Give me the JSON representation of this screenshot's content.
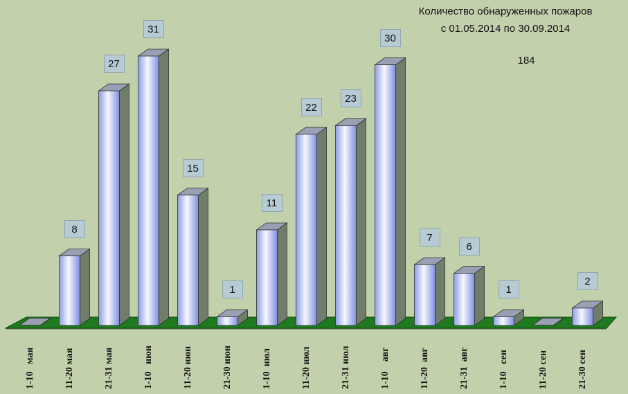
{
  "chart_data": {
    "type": "bar",
    "title": "Количество обнаруженных пожаров",
    "subtitle": "с 01.05.2014  по  30.09.2014",
    "total": "184",
    "categories": [
      "1-10   мая",
      "11-20 мая",
      "21-31 мая",
      "1-10   июн",
      "11-20 июн",
      "21-30 июн",
      "1-10  июл",
      "11-20 июл",
      "21-31 июл",
      "1-10    авг",
      "11-20  авг",
      "21-31  авг",
      "1-10   сен",
      "11-20 сен",
      "21-30 сен"
    ],
    "values": [
      0,
      8,
      27,
      31,
      15,
      1,
      11,
      22,
      23,
      30,
      7,
      6,
      1,
      0,
      2
    ],
    "value_labels": [
      "",
      "8",
      "27",
      "31",
      "15",
      "1",
      "11",
      "22",
      "23",
      "30",
      "7",
      "6",
      "1",
      "",
      "2"
    ],
    "xlabel": "",
    "ylabel": "",
    "ylim": [
      0,
      31
    ],
    "grid": false,
    "style": "3d-column",
    "colors": {
      "background": "#c3d0ac",
      "floor": "#1f7a1f",
      "bar_front_light": "#f6f8ff",
      "bar_front_dark": "#7f8fe0",
      "bar_side": "#6f7d6a",
      "bar_top": "#9aa0b4",
      "label_box": "#b7cbd4"
    }
  }
}
